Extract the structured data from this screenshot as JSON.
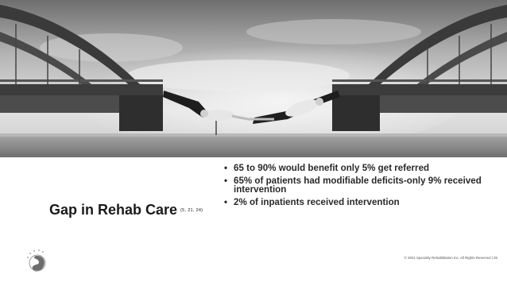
{
  "slide": {
    "title": "Gap in Rehab Care",
    "citation": "(5, 21, 24)",
    "bullets": [
      {
        "marker": "•",
        "text": "65 to 90% would benefit only 5% get referred"
      },
      {
        "marker": "•",
        "text": "65% of patients had modifiable deficits-only 9% received intervention"
      },
      {
        "marker": "•",
        "text": "2% of inpatients received intervention"
      }
    ],
    "footer": "© 2021 Specialty Rehabilitation Inc. All Rights Reserved  |  25"
  },
  "photo": {
    "subject": "two-men-bridging-gap-between-bridge-halves",
    "colors": {
      "sky_top": "#7d7d7d",
      "sky_mid": "#d9d9d9",
      "bridge": "#3c3c3c",
      "ground": "#8a8a8a"
    }
  },
  "logo": {
    "icon": "specialty-rehab-logo-icon"
  }
}
